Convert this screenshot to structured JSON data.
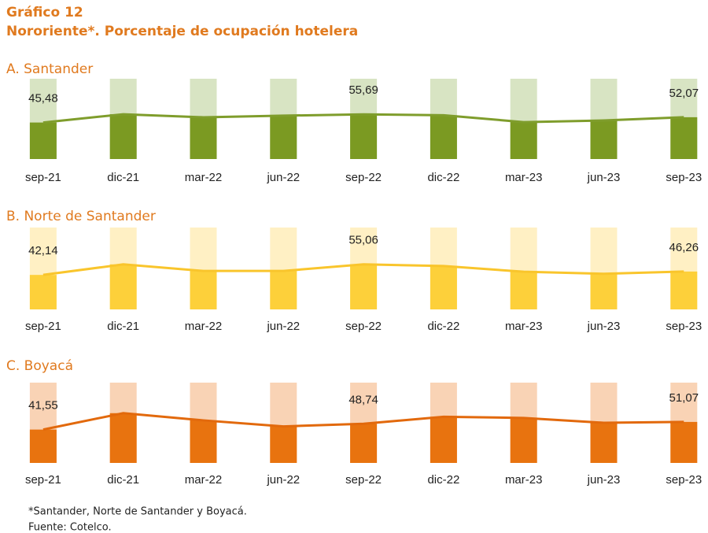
{
  "header": {
    "label": "Gráfico 12",
    "title": "Nororiente*. Porcentaje de ocupación hotelera"
  },
  "chart_data": [
    {
      "type": "bar",
      "title": "A. Santander",
      "line": true,
      "categories": [
        "sep-21",
        "dic-21",
        "mar-22",
        "jun-22",
        "sep-22",
        "dic-22",
        "mar-23",
        "jun-23",
        "sep-23"
      ],
      "values": [
        45.48,
        55.8,
        52,
        54,
        55.69,
        54.5,
        46,
        48,
        52.07
      ],
      "value_labels": [
        "45,48",
        null,
        null,
        null,
        "55,69",
        null,
        null,
        null,
        "52,07"
      ],
      "color": "#7b9a22",
      "background_color": "#d8e4c3",
      "line_color": "#7f9d2c",
      "ylim": [
        0,
        100
      ]
    },
    {
      "type": "bar",
      "title": "B. Norte de Santander",
      "line": true,
      "categories": [
        "sep-21",
        "dic-21",
        "mar-22",
        "jun-22",
        "sep-22",
        "dic-22",
        "mar-23",
        "jun-23",
        "sep-23"
      ],
      "values": [
        42.14,
        55,
        47,
        47,
        55.06,
        53,
        46,
        43.5,
        46.26
      ],
      "value_labels": [
        "42,14",
        null,
        null,
        null,
        "55,06",
        null,
        null,
        null,
        "46,26"
      ],
      "color": "#fdd03a",
      "background_color": "#fff0c4",
      "line_color": "#f9c52c",
      "ylim": [
        0,
        100
      ]
    },
    {
      "type": "bar",
      "title": "C. Boyacá",
      "line": true,
      "categories": [
        "sep-21",
        "dic-21",
        "mar-22",
        "jun-22",
        "sep-22",
        "dic-22",
        "mar-23",
        "jun-23",
        "sep-23"
      ],
      "values": [
        41.55,
        62,
        53,
        45.5,
        48.74,
        57.5,
        56,
        50,
        51.07
      ],
      "value_labels": [
        "41,55",
        null,
        null,
        null,
        "48,74",
        null,
        null,
        null,
        "51,07"
      ],
      "color": "#e8730f",
      "background_color": "#f9d3b5",
      "line_color": "#e2690c",
      "ylim": [
        0,
        100
      ]
    }
  ],
  "notes": [
    "*Santander, Norte de Santander y Boyacá.",
    "Fuente: Cotelco."
  ]
}
